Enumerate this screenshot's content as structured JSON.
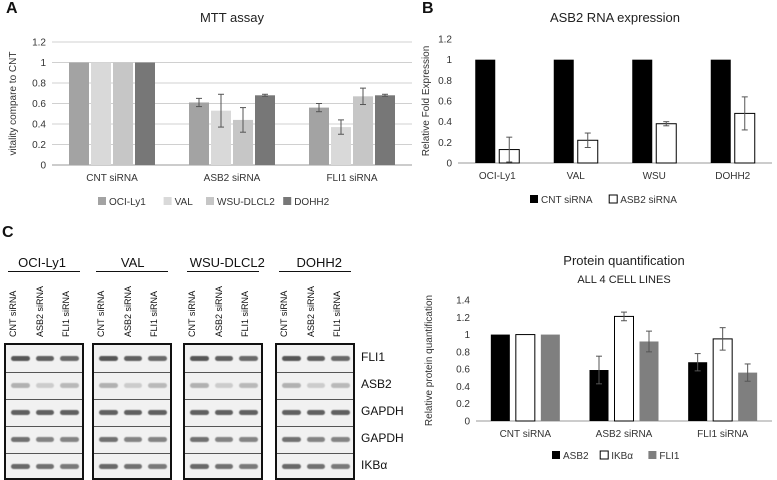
{
  "panels": {
    "a": "A",
    "b": "B",
    "c": "C"
  },
  "chart_data": [
    {
      "id": "mtt",
      "type": "bar",
      "title": "MTT assay",
      "ylabel": "vitality compare to CNT",
      "xlabel": "",
      "ylim": [
        0,
        1.2
      ],
      "yticks": [
        "0",
        "0.2",
        "0.4",
        "0.6",
        "0.8",
        "1",
        "1.2"
      ],
      "grid": true,
      "legend_position": "bottom",
      "categories": [
        "CNT siRNA",
        "ASB2 siRNA",
        "FLI1 siRNA"
      ],
      "series": [
        {
          "name": "OCI-Ly1",
          "color": "#a3a3a3",
          "values": [
            1.0,
            0.61,
            0.56
          ],
          "errors": [
            0,
            0.04,
            0.04
          ]
        },
        {
          "name": "VAL",
          "color": "#d9d9d9",
          "values": [
            1.0,
            0.53,
            0.37
          ],
          "errors": [
            0,
            0.16,
            0.07
          ]
        },
        {
          "name": "WSU-DLCL2",
          "color": "#c6c6c6",
          "values": [
            1.0,
            0.44,
            0.67
          ],
          "errors": [
            0,
            0.12,
            0.08
          ]
        },
        {
          "name": "DOHH2",
          "color": "#777777",
          "values": [
            1.0,
            0.68,
            0.68
          ],
          "errors": [
            0,
            0.01,
            0.01
          ]
        }
      ]
    },
    {
      "id": "rna",
      "type": "bar",
      "title": "ASB2 RNA expression",
      "ylabel": "Relative Fold Expression",
      "xlabel": "",
      "ylim": [
        0,
        1.2
      ],
      "yticks": [
        "0",
        "0.2",
        "0.4",
        "0.6",
        "0.8",
        "1",
        "1.2"
      ],
      "grid": false,
      "legend_position": "bottom",
      "categories": [
        "OCI-Ly1",
        "VAL",
        "WSU",
        "DOHH2"
      ],
      "series": [
        {
          "name": "CNT siRNA",
          "color": "#000000",
          "values": [
            1.0,
            1.0,
            1.0,
            1.0
          ],
          "errors": [
            0,
            0,
            0,
            0
          ]
        },
        {
          "name": "ASB2 siRNA",
          "color": "#ffffff",
          "values": [
            0.13,
            0.22,
            0.38,
            0.48
          ],
          "errors": [
            0.12,
            0.07,
            0.02,
            0.16
          ]
        }
      ]
    },
    {
      "id": "protein",
      "type": "bar",
      "title": "Protein quantification",
      "subtitle": "ALL 4 CELL LINES",
      "ylabel": "Relative protein quantification",
      "xlabel": "",
      "ylim": [
        0,
        1.4
      ],
      "yticks": [
        "0",
        "0.2",
        "0.4",
        "0.6",
        "0.8",
        "1",
        "1.2",
        "1.4"
      ],
      "grid": false,
      "legend_position": "bottom",
      "categories": [
        "CNT siRNA",
        "ASB2 siRNA",
        "FLI1 siRNA"
      ],
      "series": [
        {
          "name": "ASB2",
          "color": "#000000",
          "values": [
            1.0,
            0.59,
            0.68
          ],
          "errors": [
            0,
            0.16,
            0.1
          ]
        },
        {
          "name": "IKBα",
          "color": "#ffffff",
          "values": [
            1.0,
            1.21,
            0.95
          ],
          "errors": [
            0,
            0.05,
            0.13
          ]
        },
        {
          "name": "FLI1",
          "color": "#7f7f7f",
          "values": [
            1.0,
            0.92,
            0.56
          ],
          "errors": [
            0,
            0.12,
            0.1
          ]
        }
      ]
    }
  ],
  "western_blot": {
    "lane_labels": [
      "CNT siRNA",
      "ASB2 siRNA",
      "FLI1 siRNA"
    ],
    "cell_lines": [
      "OCI-Ly1",
      "VAL",
      "WSU-DLCL2",
      "DOHH2"
    ],
    "proteins": [
      "FLI1",
      "ASB2",
      "GAPDH",
      "GAPDH",
      "IKBα"
    ]
  }
}
